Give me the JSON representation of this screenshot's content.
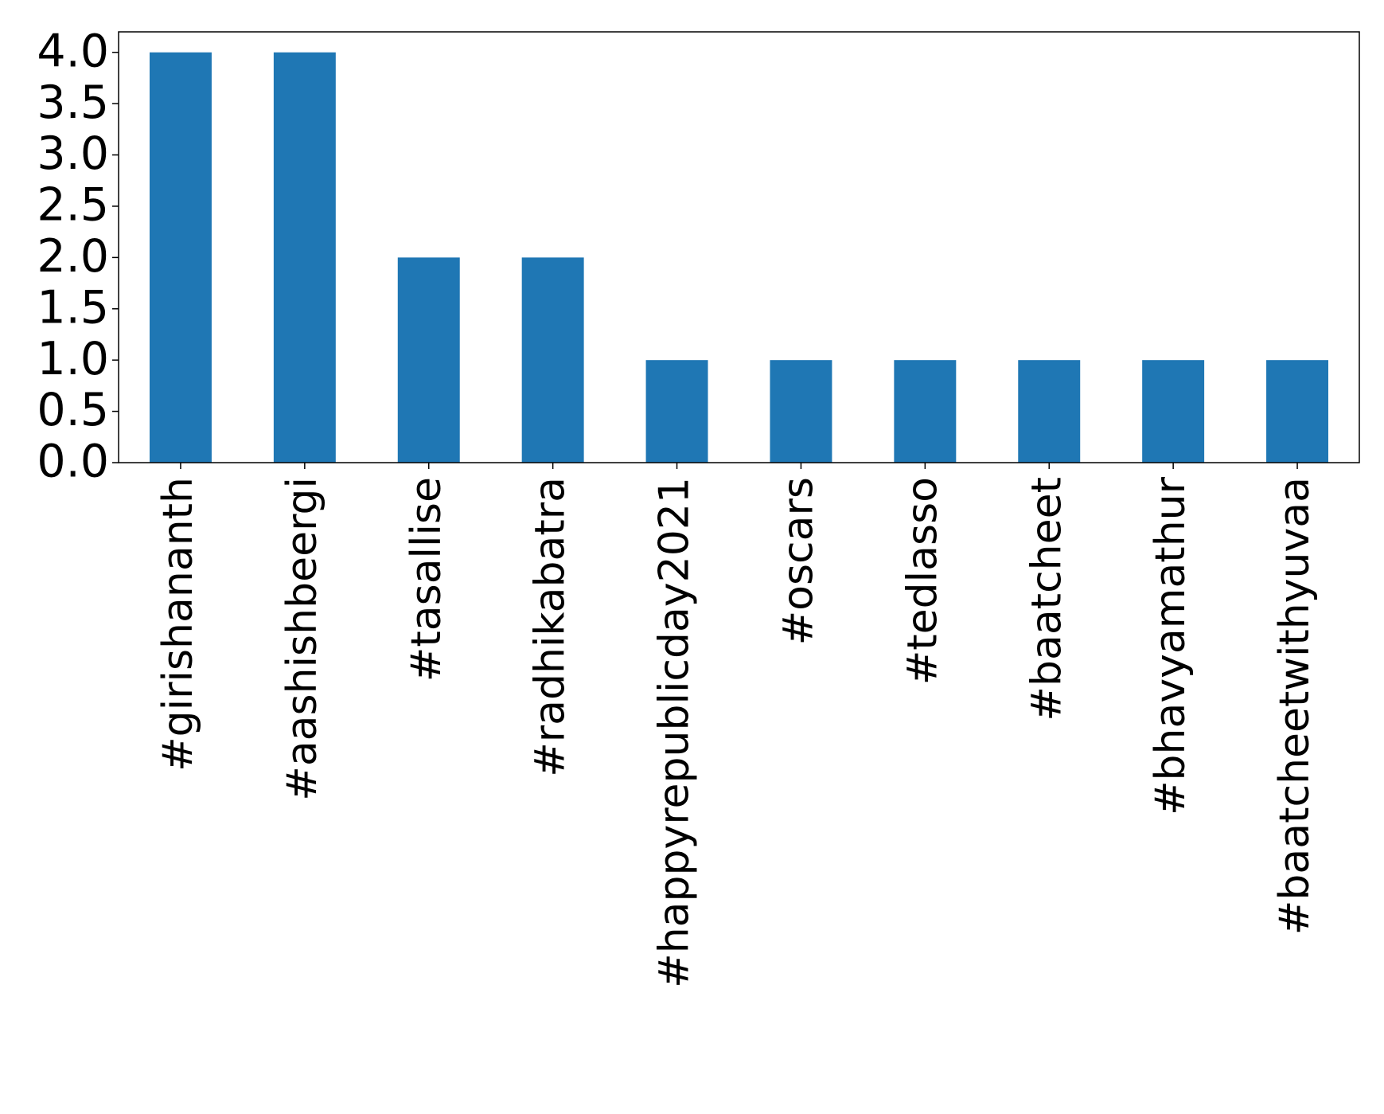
{
  "chart_data": {
    "type": "bar",
    "categories": [
      "#girishananth",
      "#aashishbeergi",
      "#tasallise",
      "#radhikabatra",
      "#happyrepublicday2021",
      "#oscars",
      "#tedlasso",
      "#baatcheet",
      "#bhavyamathur",
      "#baatcheetwithyuvaa"
    ],
    "values": [
      4,
      4,
      2,
      2,
      1,
      1,
      1,
      1,
      1,
      1
    ],
    "color": "#1f77b4",
    "ylim": [
      0,
      4.2
    ],
    "yticks": [
      {
        "value": 0,
        "label": "0.0"
      },
      0.5,
      {
        "value": 1,
        "label": "1.0"
      },
      1.5,
      {
        "value": 2,
        "label": "2.0"
      },
      2.5,
      {
        "value": 3,
        "label": "3.0"
      },
      3.5,
      {
        "value": 4,
        "label": "4.0"
      }
    ],
    "grid": false
  }
}
